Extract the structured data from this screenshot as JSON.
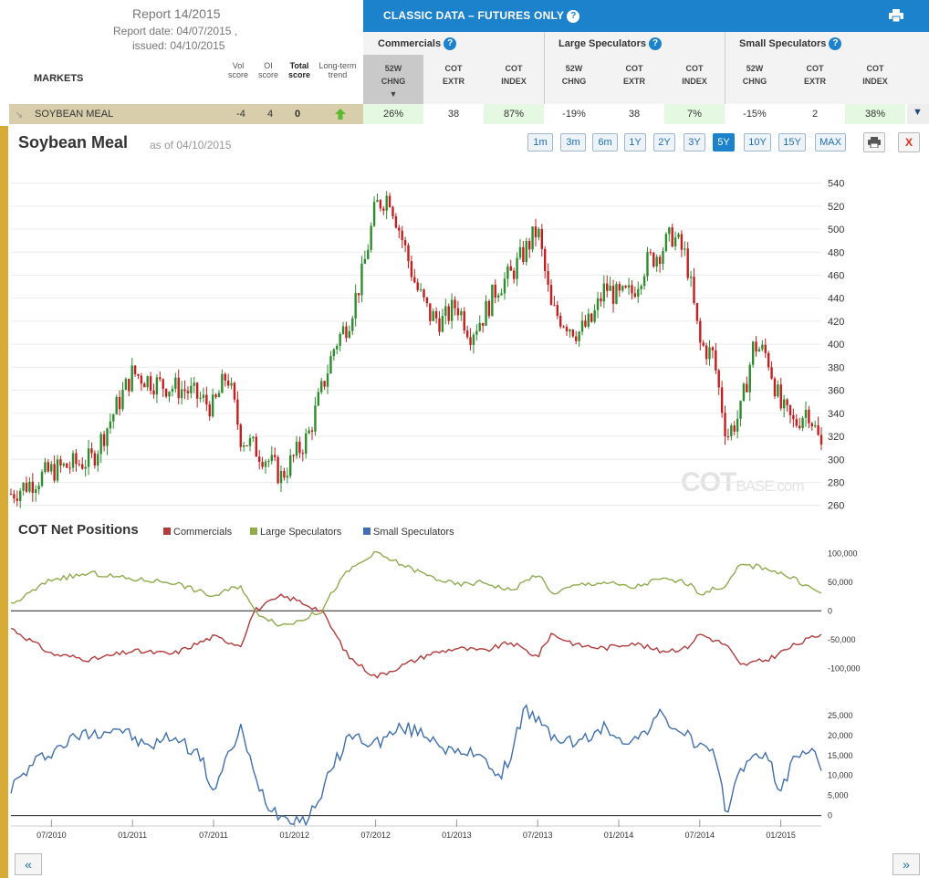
{
  "report": {
    "title": "Report 14/2015",
    "report_date": "Report date: 04/07/2015 ,",
    "issued": "issued: 04/10/2015",
    "markets_label": "MARKETS",
    "col_vol": "Vol score",
    "col_oi": "OI score",
    "col_total": "Total score",
    "col_trend": "Long-term trend"
  },
  "classic": {
    "title": "CLASSIC DATA – FUTURES ONLY",
    "groups": [
      "Commercials",
      "Large Speculators",
      "Small Speculators"
    ],
    "col_heads": [
      "52W CHNG",
      "COT EXTR",
      "COT INDEX",
      "52W CHNG",
      "COT EXTR",
      "COT INDEX",
      "52W CHNG",
      "COT EXTR",
      "COT INDEX"
    ]
  },
  "row": {
    "market": "SOYBEAN MEAL",
    "vol": "-4",
    "oi": "4",
    "total": "0",
    "values": [
      "26%",
      "38",
      "87%",
      "-19%",
      "38",
      "7%",
      "-15%",
      "2",
      "38%"
    ],
    "green_cells": [
      true,
      false,
      true,
      false,
      false,
      true,
      false,
      false,
      true
    ]
  },
  "chart": {
    "title": "Soybean Meal",
    "as_of": "as of 04/10/2015",
    "ranges": [
      "1m",
      "3m",
      "6m",
      "1Y",
      "2Y",
      "3Y",
      "5Y",
      "10Y",
      "15Y",
      "MAX"
    ],
    "active_range": "5Y",
    "close_label": "X",
    "watermark_main": "COT",
    "watermark_tail": "BASE.com",
    "cot_title": "COT Net Positions",
    "legend": [
      "Commercials",
      "Large Speculators",
      "Small Speculators"
    ],
    "nav_prev": "«",
    "nav_next": "»",
    "colors": {
      "up": "#2d8c2d",
      "down": "#c41e1e",
      "commercials": "#b23b3b",
      "large_speculators": "#8fab4c",
      "small_speculators": "#3f6fae",
      "accent": "#1d82cc"
    }
  },
  "chart_data": [
    {
      "type": "candlestick",
      "title": "Soybean Meal",
      "y_ticks": [
        260,
        280,
        300,
        320,
        340,
        360,
        380,
        400,
        420,
        440,
        460,
        480,
        500,
        520,
        540
      ],
      "ylim": [
        255,
        550
      ],
      "x_ticks": [
        "07/2010",
        "01/2011",
        "07/2011",
        "01/2012",
        "07/2012",
        "01/2013",
        "07/2013",
        "01/2014",
        "07/2014",
        "01/2015"
      ],
      "x_range": [
        "04/2010",
        "04/2015"
      ],
      "close_approx": [
        [
          "04/2010",
          270
        ],
        [
          "07/2010",
          290
        ],
        [
          "10/2010",
          300
        ],
        [
          "12/2010",
          350
        ],
        [
          "01/2011",
          375
        ],
        [
          "03/2011",
          365
        ],
        [
          "05/2011",
          360
        ],
        [
          "07/2011",
          345
        ],
        [
          "08/2011",
          375
        ],
        [
          "09/2011",
          320
        ],
        [
          "11/2011",
          300
        ],
        [
          "12/2011",
          285
        ],
        [
          "02/2012",
          320
        ],
        [
          "03/2012",
          360
        ],
        [
          "04/2012",
          400
        ],
        [
          "05/2012",
          420
        ],
        [
          "06/2012",
          460
        ],
        [
          "07/2012",
          520
        ],
        [
          "08/2012",
          530
        ],
        [
          "09/2012",
          490
        ],
        [
          "10/2012",
          450
        ],
        [
          "11/2012",
          425
        ],
        [
          "12/2012",
          420
        ],
        [
          "01/2013",
          435
        ],
        [
          "02/2013",
          410
        ],
        [
          "03/2013",
          425
        ],
        [
          "04/2013",
          450
        ],
        [
          "05/2013",
          460
        ],
        [
          "06/2013",
          480
        ],
        [
          "07/2013",
          500
        ],
        [
          "08/2013",
          430
        ],
        [
          "09/2013",
          420
        ],
        [
          "10/2013",
          410
        ],
        [
          "11/2013",
          420
        ],
        [
          "12/2013",
          450
        ],
        [
          "01/2014",
          440
        ],
        [
          "02/2014",
          445
        ],
        [
          "03/2014",
          470
        ],
        [
          "04/2014",
          480
        ],
        [
          "05/2014",
          495
        ],
        [
          "06/2014",
          475
        ],
        [
          "07/2014",
          400
        ],
        [
          "08/2014",
          390
        ],
        [
          "09/2014",
          320
        ],
        [
          "10/2014",
          340
        ],
        [
          "11/2014",
          400
        ],
        [
          "12/2014",
          390
        ],
        [
          "01/2015",
          345
        ],
        [
          "02/2015",
          330
        ],
        [
          "03/2015",
          345
        ],
        [
          "04/2015",
          310
        ]
      ]
    },
    {
      "type": "line",
      "title": "COT Net Positions",
      "y_ticks": [
        -100000,
        -50000,
        0,
        50000,
        100000
      ],
      "ylim": [
        -125000,
        110000
      ],
      "series": [
        {
          "name": "Commercials",
          "points": [
            [
              "04/2010",
              -30000
            ],
            [
              "07/2010",
              -75000
            ],
            [
              "10/2010",
              -85000
            ],
            [
              "01/2011",
              -70000
            ],
            [
              "04/2011",
              -75000
            ],
            [
              "07/2011",
              -45000
            ],
            [
              "09/2011",
              -60000
            ],
            [
              "10/2011",
              0
            ],
            [
              "12/2011",
              25000
            ],
            [
              "01/2012",
              20000
            ],
            [
              "03/2012",
              0
            ],
            [
              "04/2012",
              -40000
            ],
            [
              "05/2012",
              -80000
            ],
            [
              "07/2012",
              -115000
            ],
            [
              "09/2012",
              -95000
            ],
            [
              "11/2012",
              -75000
            ],
            [
              "01/2013",
              -65000
            ],
            [
              "03/2013",
              -70000
            ],
            [
              "05/2013",
              -55000
            ],
            [
              "07/2013",
              -80000
            ],
            [
              "08/2013",
              -40000
            ],
            [
              "10/2013",
              -60000
            ],
            [
              "12/2013",
              -65000
            ],
            [
              "02/2014",
              -55000
            ],
            [
              "04/2014",
              -70000
            ],
            [
              "06/2014",
              -65000
            ],
            [
              "07/2014",
              -40000
            ],
            [
              "09/2014",
              -60000
            ],
            [
              "10/2014",
              -95000
            ],
            [
              "12/2014",
              -85000
            ],
            [
              "02/2015",
              -60000
            ],
            [
              "04/2015",
              -40000
            ]
          ]
        },
        {
          "name": "Large Speculators",
          "points": [
            [
              "04/2010",
              10000
            ],
            [
              "07/2010",
              55000
            ],
            [
              "10/2010",
              65000
            ],
            [
              "01/2011",
              55000
            ],
            [
              "04/2011",
              50000
            ],
            [
              "07/2011",
              25000
            ],
            [
              "09/2011",
              45000
            ],
            [
              "10/2011",
              0
            ],
            [
              "12/2011",
              -25000
            ],
            [
              "01/2012",
              -20000
            ],
            [
              "03/2012",
              0
            ],
            [
              "04/2012",
              40000
            ],
            [
              "05/2012",
              70000
            ],
            [
              "07/2012",
              100000
            ],
            [
              "09/2012",
              80000
            ],
            [
              "11/2012",
              60000
            ],
            [
              "01/2013",
              45000
            ],
            [
              "03/2013",
              50000
            ],
            [
              "05/2013",
              35000
            ],
            [
              "07/2013",
              65000
            ],
            [
              "08/2013",
              30000
            ],
            [
              "10/2013",
              45000
            ],
            [
              "12/2013",
              50000
            ],
            [
              "02/2014",
              40000
            ],
            [
              "04/2014",
              55000
            ],
            [
              "06/2014",
              50000
            ],
            [
              "07/2014",
              30000
            ],
            [
              "09/2014",
              45000
            ],
            [
              "10/2014",
              80000
            ],
            [
              "12/2014",
              75000
            ],
            [
              "02/2015",
              55000
            ],
            [
              "04/2015",
              30000
            ]
          ]
        }
      ]
    },
    {
      "type": "line",
      "y_ticks": [
        0,
        5000,
        10000,
        15000,
        20000,
        25000
      ],
      "ylim": [
        -1000,
        30000
      ],
      "series": [
        {
          "name": "Small Speculators",
          "points": [
            [
              "04/2010",
              7000
            ],
            [
              "06/2010",
              14000
            ],
            [
              "09/2010",
              20000
            ],
            [
              "12/2010",
              22000
            ],
            [
              "02/2011",
              17000
            ],
            [
              "04/2011",
              20000
            ],
            [
              "06/2011",
              15000
            ],
            [
              "07/2011",
              6000
            ],
            [
              "09/2011",
              22000
            ],
            [
              "10/2011",
              10000
            ],
            [
              "11/2011",
              3000
            ],
            [
              "12/2011",
              0
            ],
            [
              "02/2012",
              -1000
            ],
            [
              "03/2012",
              6000
            ],
            [
              "05/2012",
              20000
            ],
            [
              "07/2012",
              18000
            ],
            [
              "09/2012",
              22000
            ],
            [
              "11/2012",
              20000
            ],
            [
              "01/2013",
              15000
            ],
            [
              "03/2013",
              16000
            ],
            [
              "04/2013",
              8000
            ],
            [
              "05/2013",
              15000
            ],
            [
              "06/2013",
              27000
            ],
            [
              "08/2013",
              20000
            ],
            [
              "10/2013",
              18000
            ],
            [
              "12/2013",
              22000
            ],
            [
              "02/2014",
              18000
            ],
            [
              "04/2014",
              25000
            ],
            [
              "06/2014",
              20000
            ],
            [
              "08/2014",
              15000
            ],
            [
              "09/2014",
              1000
            ],
            [
              "10/2014",
              12000
            ],
            [
              "12/2014",
              16000
            ],
            [
              "01/2015",
              5000
            ],
            [
              "02/2015",
              15000
            ],
            [
              "03/2015",
              17000
            ],
            [
              "04/2015",
              12000
            ]
          ]
        }
      ]
    }
  ]
}
